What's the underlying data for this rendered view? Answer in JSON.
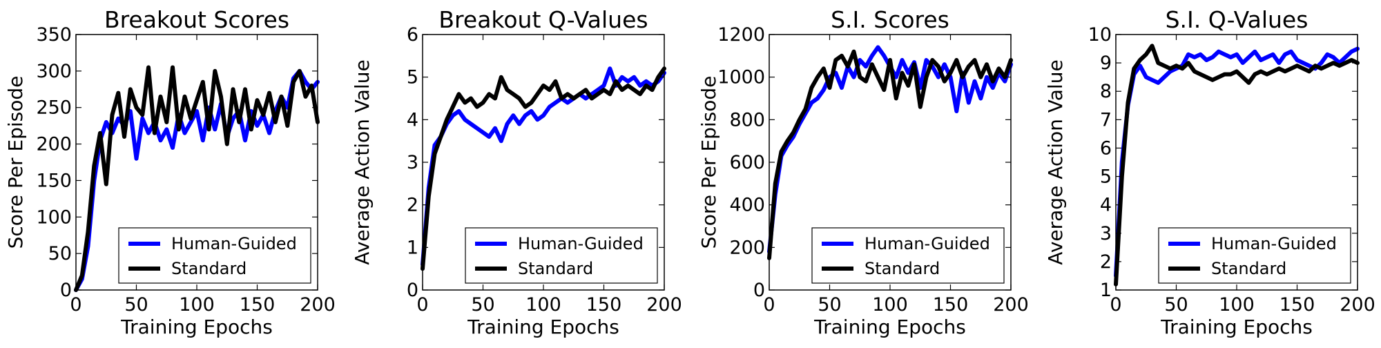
{
  "chart_data": [
    {
      "type": "line",
      "title": "Breakout Scores",
      "xlabel": "Training Epochs",
      "ylabel": "Score Per Episode",
      "xlim": [
        0,
        200
      ],
      "ylim": [
        0,
        350
      ],
      "xticks": [
        0,
        50,
        100,
        150,
        200
      ],
      "yticks": [
        0,
        50,
        100,
        150,
        200,
        250,
        300,
        350
      ],
      "grid": false,
      "legend_position": "lower-right",
      "series": [
        {
          "name": "Human-Guided",
          "color": "#0000ff",
          "x": [
            0,
            5,
            10,
            15,
            20,
            25,
            30,
            35,
            40,
            45,
            50,
            55,
            60,
            65,
            70,
            75,
            80,
            85,
            90,
            95,
            100,
            105,
            110,
            115,
            120,
            125,
            130,
            135,
            140,
            145,
            150,
            155,
            160,
            165,
            170,
            175,
            180,
            185,
            190,
            195,
            200
          ],
          "y": [
            0,
            15,
            60,
            150,
            205,
            230,
            215,
            235,
            225,
            245,
            180,
            235,
            215,
            230,
            205,
            220,
            195,
            240,
            215,
            230,
            245,
            205,
            250,
            220,
            255,
            210,
            235,
            245,
            205,
            245,
            225,
            240,
            215,
            245,
            265,
            250,
            290,
            300,
            285,
            275,
            285
          ]
        },
        {
          "name": "Standard",
          "color": "#000000",
          "x": [
            0,
            5,
            10,
            15,
            20,
            25,
            30,
            35,
            40,
            45,
            50,
            55,
            60,
            65,
            70,
            75,
            80,
            85,
            90,
            95,
            100,
            105,
            110,
            115,
            120,
            125,
            130,
            135,
            140,
            145,
            150,
            155,
            160,
            165,
            170,
            175,
            180,
            185,
            190,
            195,
            200
          ],
          "y": [
            0,
            20,
            80,
            170,
            215,
            145,
            240,
            270,
            210,
            275,
            250,
            240,
            305,
            215,
            265,
            230,
            305,
            220,
            265,
            235,
            260,
            285,
            220,
            300,
            265,
            200,
            275,
            230,
            275,
            220,
            260,
            240,
            270,
            230,
            265,
            225,
            285,
            300,
            265,
            280,
            230
          ]
        }
      ]
    },
    {
      "type": "line",
      "title": "Breakout Q-Values",
      "xlabel": "Training Epochs",
      "ylabel": "Average Action Value",
      "xlim": [
        0,
        200
      ],
      "ylim": [
        0,
        6
      ],
      "xticks": [
        0,
        50,
        100,
        150,
        200
      ],
      "yticks": [
        0,
        1,
        2,
        3,
        4,
        5,
        6
      ],
      "grid": false,
      "legend_position": "lower-right",
      "series": [
        {
          "name": "Human-Guided",
          "color": "#0000ff",
          "x": [
            0,
            5,
            10,
            15,
            20,
            25,
            30,
            35,
            40,
            45,
            50,
            55,
            60,
            65,
            70,
            75,
            80,
            85,
            90,
            95,
            100,
            105,
            110,
            115,
            120,
            125,
            130,
            135,
            140,
            145,
            150,
            155,
            160,
            165,
            170,
            175,
            180,
            185,
            190,
            195,
            200
          ],
          "y": [
            0.6,
            2.4,
            3.4,
            3.6,
            3.9,
            4.1,
            4.2,
            4.0,
            3.9,
            3.8,
            3.7,
            3.6,
            3.8,
            3.5,
            3.9,
            4.1,
            3.9,
            4.1,
            4.2,
            4.0,
            4.1,
            4.3,
            4.4,
            4.5,
            4.4,
            4.5,
            4.6,
            4.5,
            4.6,
            4.7,
            4.8,
            5.2,
            4.8,
            5.0,
            4.9,
            5.0,
            4.8,
            4.9,
            4.8,
            4.9,
            5.1
          ]
        },
        {
          "name": "Standard",
          "color": "#000000",
          "x": [
            0,
            5,
            10,
            15,
            20,
            25,
            30,
            35,
            40,
            45,
            50,
            55,
            60,
            65,
            70,
            75,
            80,
            85,
            90,
            95,
            100,
            105,
            110,
            115,
            120,
            125,
            130,
            135,
            140,
            145,
            150,
            155,
            160,
            165,
            170,
            175,
            180,
            185,
            190,
            195,
            200
          ],
          "y": [
            0.5,
            2.2,
            3.2,
            3.6,
            4.0,
            4.3,
            4.6,
            4.4,
            4.5,
            4.3,
            4.4,
            4.6,
            4.5,
            5.0,
            4.7,
            4.6,
            4.5,
            4.3,
            4.4,
            4.6,
            4.8,
            4.7,
            4.9,
            4.5,
            4.6,
            4.5,
            4.6,
            4.7,
            4.5,
            4.6,
            4.7,
            4.6,
            4.9,
            4.7,
            4.8,
            4.7,
            4.6,
            4.8,
            4.7,
            5.0,
            5.2
          ]
        }
      ]
    },
    {
      "type": "line",
      "title": "S.I. Scores",
      "xlabel": "Training Epochs",
      "ylabel": "Score Per Episode",
      "xlim": [
        0,
        200
      ],
      "ylim": [
        0,
        1200
      ],
      "xticks": [
        0,
        50,
        100,
        150,
        200
      ],
      "yticks": [
        0,
        200,
        400,
        600,
        800,
        1000,
        1200
      ],
      "grid": false,
      "legend_position": "lower-right",
      "series": [
        {
          "name": "Human-Guided",
          "color": "#0000ff",
          "x": [
            0,
            5,
            10,
            15,
            20,
            25,
            30,
            35,
            40,
            45,
            50,
            55,
            60,
            65,
            70,
            75,
            80,
            85,
            90,
            95,
            100,
            105,
            110,
            115,
            120,
            125,
            130,
            135,
            140,
            145,
            150,
            155,
            160,
            165,
            170,
            175,
            180,
            185,
            190,
            195,
            200
          ],
          "y": [
            180,
            450,
            630,
            680,
            720,
            780,
            830,
            880,
            900,
            940,
            1000,
            1020,
            950,
            1050,
            1000,
            1080,
            1050,
            1100,
            1140,
            1100,
            1050,
            1000,
            1080,
            1020,
            1070,
            950,
            1080,
            1050,
            1000,
            1060,
            1000,
            840,
            1020,
            880,
            980,
            900,
            1000,
            950,
            1020,
            980,
            1060
          ]
        },
        {
          "name": "Standard",
          "color": "#000000",
          "x": [
            0,
            5,
            10,
            15,
            20,
            25,
            30,
            35,
            40,
            45,
            50,
            55,
            60,
            65,
            70,
            75,
            80,
            85,
            90,
            95,
            100,
            105,
            110,
            115,
            120,
            125,
            130,
            135,
            140,
            145,
            150,
            155,
            160,
            165,
            170,
            175,
            180,
            185,
            190,
            195,
            200
          ],
          "y": [
            150,
            500,
            650,
            700,
            740,
            800,
            850,
            950,
            1000,
            1040,
            950,
            1080,
            1100,
            1050,
            1120,
            1000,
            980,
            1060,
            1000,
            940,
            1080,
            900,
            1020,
            960,
            1060,
            860,
            1000,
            1080,
            1050,
            980,
            1020,
            1080,
            1000,
            1050,
            1080,
            1000,
            1060,
            980,
            1040,
            1000,
            1080
          ]
        }
      ]
    },
    {
      "type": "line",
      "title": "S.I. Q-Values",
      "xlabel": "Training Epochs",
      "ylabel": "Average Action Value",
      "xlim": [
        0,
        200
      ],
      "ylim": [
        1,
        10
      ],
      "xticks": [
        0,
        50,
        100,
        150,
        200
      ],
      "yticks": [
        1,
        2,
        3,
        4,
        5,
        6,
        7,
        8,
        9,
        10
      ],
      "grid": false,
      "legend_position": "lower-right",
      "series": [
        {
          "name": "Human-Guided",
          "color": "#0000ff",
          "x": [
            0,
            5,
            10,
            15,
            20,
            25,
            30,
            35,
            40,
            45,
            50,
            55,
            60,
            65,
            70,
            75,
            80,
            85,
            90,
            95,
            100,
            105,
            110,
            115,
            120,
            125,
            130,
            135,
            140,
            145,
            150,
            155,
            160,
            165,
            170,
            175,
            180,
            185,
            190,
            195,
            200
          ],
          "y": [
            1.5,
            5.5,
            7.5,
            8.6,
            8.9,
            8.5,
            8.4,
            8.3,
            8.5,
            8.7,
            8.8,
            8.9,
            9.3,
            9.2,
            9.3,
            9.1,
            9.2,
            9.4,
            9.3,
            9.2,
            9.3,
            9.0,
            9.2,
            9.4,
            9.1,
            9.2,
            9.3,
            9.0,
            9.3,
            9.4,
            9.1,
            9.0,
            8.9,
            8.8,
            9.0,
            9.3,
            9.2,
            9.0,
            9.2,
            9.4,
            9.5
          ]
        },
        {
          "name": "Standard",
          "color": "#000000",
          "x": [
            0,
            5,
            10,
            15,
            20,
            25,
            30,
            35,
            40,
            45,
            50,
            55,
            60,
            65,
            70,
            75,
            80,
            85,
            90,
            95,
            100,
            105,
            110,
            115,
            120,
            125,
            130,
            135,
            140,
            145,
            150,
            155,
            160,
            165,
            170,
            175,
            180,
            185,
            190,
            195,
            200
          ],
          "y": [
            1.2,
            5.0,
            7.6,
            8.8,
            9.1,
            9.3,
            9.6,
            9.0,
            8.9,
            8.8,
            8.9,
            8.8,
            9.0,
            8.7,
            8.6,
            8.5,
            8.4,
            8.5,
            8.6,
            8.6,
            8.7,
            8.5,
            8.3,
            8.6,
            8.7,
            8.6,
            8.7,
            8.8,
            8.7,
            8.8,
            8.9,
            8.8,
            8.7,
            8.9,
            8.8,
            8.9,
            9.0,
            8.9,
            9.0,
            9.1,
            9.0
          ]
        }
      ]
    }
  ]
}
